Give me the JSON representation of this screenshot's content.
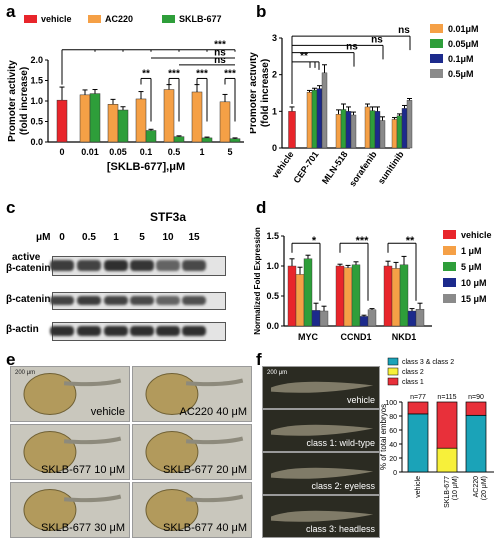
{
  "panels": {
    "a": {
      "label": "a"
    },
    "b": {
      "label": "b"
    },
    "c": {
      "label": "c"
    },
    "d": {
      "label": "d"
    },
    "e": {
      "label": "e"
    },
    "f": {
      "label": "f"
    }
  },
  "colors": {
    "red": "#e8252b",
    "orange": "#f5a046",
    "green": "#2e9e3a",
    "navy": "#1c2a8c",
    "gray": "#8a8a8a",
    "teal": "#1ba3b8",
    "yellow": "#f7f03a",
    "fred": "#e8303a"
  },
  "chart_data": [
    {
      "panel": "a",
      "type": "bar",
      "ylabel": "Promoter activity\n(fold increase)",
      "xlabel": "[SKLB-677],μM",
      "ylim": [
        0,
        2.0
      ],
      "yticks": [
        "0.0",
        "0.5",
        "1.0",
        "1.5",
        "2.0"
      ],
      "legend": [
        "vehicle",
        "AC220",
        "SKLB-677"
      ],
      "groups": [
        {
          "x": "0",
          "bars": [
            {
              "s": "vehicle",
              "v": 1.02,
              "e": 0.32
            }
          ]
        },
        {
          "x": "0.01",
          "bars": [
            {
              "s": "AC220",
              "v": 1.15,
              "e": 0.12
            },
            {
              "s": "SKLB-677",
              "v": 1.18,
              "e": 0.1
            }
          ]
        },
        {
          "x": "0.05",
          "bars": [
            {
              "s": "AC220",
              "v": 0.92,
              "e": 0.12
            },
            {
              "s": "SKLB-677",
              "v": 0.78,
              "e": 0.08
            }
          ]
        },
        {
          "x": "0.1",
          "bars": [
            {
              "s": "AC220",
              "v": 1.05,
              "e": 0.18
            },
            {
              "s": "SKLB-677",
              "v": 0.28,
              "e": 0.03
            }
          ]
        },
        {
          "x": "0.5",
          "bars": [
            {
              "s": "AC220",
              "v": 1.28,
              "e": 0.12
            },
            {
              "s": "SKLB-677",
              "v": 0.13,
              "e": 0.02
            }
          ]
        },
        {
          "x": "1",
          "bars": [
            {
              "s": "AC220",
              "v": 1.22,
              "e": 0.18
            },
            {
              "s": "SKLB-677",
              "v": 0.1,
              "e": 0.02
            }
          ]
        },
        {
          "x": "5",
          "bars": [
            {
              "s": "AC220",
              "v": 0.98,
              "e": 0.18
            },
            {
              "s": "SKLB-677",
              "v": 0.08,
              "e": 0.02
            }
          ]
        }
      ],
      "annotations": [
        "**",
        "***",
        "***",
        "***",
        "ns",
        "ns",
        "***"
      ]
    },
    {
      "panel": "b",
      "type": "bar",
      "ylabel": "Promoter activity\n(fold increase)",
      "ylim": [
        0,
        3
      ],
      "yticks": [
        "0",
        "1",
        "2",
        "3"
      ],
      "legend": [
        "0.01μM",
        "0.05μM",
        "0.1μM",
        "0.5μM"
      ],
      "groups": [
        {
          "x": "vehicle",
          "bars": [
            {
              "s": "vehicle",
              "v": 1.0,
              "e": 0.12
            }
          ]
        },
        {
          "x": "CEP-701",
          "bars": [
            {
              "s": "0.01μM",
              "v": 1.52,
              "e": 0.05
            },
            {
              "s": "0.05μM",
              "v": 1.58,
              "e": 0.05
            },
            {
              "s": "0.1μM",
              "v": 1.62,
              "e": 0.08
            },
            {
              "s": "0.5μM",
              "v": 2.05,
              "e": 0.22
            }
          ]
        },
        {
          "x": "MLN-518",
          "bars": [
            {
              "s": "0.01μM",
              "v": 0.92,
              "e": 0.12
            },
            {
              "s": "0.05μM",
              "v": 1.05,
              "e": 0.15
            },
            {
              "s": "0.1μM",
              "v": 1.0,
              "e": 0.12
            },
            {
              "s": "0.5μM",
              "v": 0.9,
              "e": 0.08
            }
          ]
        },
        {
          "x": "sorafenib",
          "bars": [
            {
              "s": "0.01μM",
              "v": 1.12,
              "e": 0.08
            },
            {
              "s": "0.05μM",
              "v": 1.02,
              "e": 0.1
            },
            {
              "s": "0.1μM",
              "v": 1.0,
              "e": 0.12
            },
            {
              "s": "0.5μM",
              "v": 0.75,
              "e": 0.1
            }
          ]
        },
        {
          "x": "sunitinib",
          "bars": [
            {
              "s": "0.01μM",
              "v": 0.78,
              "e": 0.05
            },
            {
              "s": "0.05μM",
              "v": 0.88,
              "e": 0.05
            },
            {
              "s": "0.1μM",
              "v": 1.08,
              "e": 0.08
            },
            {
              "s": "0.5μM",
              "v": 1.3,
              "e": 0.05
            }
          ]
        }
      ],
      "annotations": [
        "**",
        "ns",
        "ns",
        "ns"
      ]
    },
    {
      "panel": "d",
      "type": "bar",
      "ylabel": "Normalized Fold Expression",
      "ylim": [
        0,
        1.5
      ],
      "yticks": [
        "0.0",
        "0.5",
        "1.0",
        "1.5"
      ],
      "legend": [
        "vehicle",
        "1 μM",
        "5 μM",
        "10 μM",
        "15 μM"
      ],
      "groups": [
        {
          "x": "MYC",
          "bars": [
            {
              "s": "vehicle",
              "v": 1.0,
              "e": 0.12
            },
            {
              "s": "1 μM",
              "v": 0.86,
              "e": 0.12
            },
            {
              "s": "5 μM",
              "v": 1.12,
              "e": 0.06
            },
            {
              "s": "10 μM",
              "v": 0.26,
              "e": 0.12
            },
            {
              "s": "15 μM",
              "v": 0.25,
              "e": 0.08
            }
          ]
        },
        {
          "x": "CCND1",
          "bars": [
            {
              "s": "vehicle",
              "v": 1.0,
              "e": 0.03
            },
            {
              "s": "1 μM",
              "v": 0.97,
              "e": 0.04
            },
            {
              "s": "5 μM",
              "v": 1.02,
              "e": 0.05
            },
            {
              "s": "10 μM",
              "v": 0.16,
              "e": 0.02
            },
            {
              "s": "15 μM",
              "v": 0.27,
              "e": 0.02
            }
          ]
        },
        {
          "x": "NKD1",
          "bars": [
            {
              "s": "vehicle",
              "v": 1.0,
              "e": 0.08
            },
            {
              "s": "1 μM",
              "v": 0.96,
              "e": 0.1
            },
            {
              "s": "5 μM",
              "v": 1.02,
              "e": 0.14
            },
            {
              "s": "10 μM",
              "v": 0.25,
              "e": 0.04
            },
            {
              "s": "15 μM",
              "v": 0.28,
              "e": 0.1
            }
          ]
        }
      ],
      "annotations": [
        "*",
        "***",
        "**"
      ]
    },
    {
      "panel": "f",
      "type": "bar",
      "stacked": true,
      "ylabel": "% of total embryos",
      "ylim": [
        0,
        100
      ],
      "yticks": [
        "0",
        "20",
        "40",
        "60",
        "80",
        "100"
      ],
      "legend": [
        "class 3 & class 2",
        "class 2",
        "class 1"
      ],
      "categories": [
        "vehicle",
        "SKLB-677\n(10 μM)",
        "AC220\n(20 μM)"
      ],
      "n_labels": [
        "n=77",
        "n=115",
        "n=90"
      ],
      "series": [
        {
          "name": "class 3 & class 2",
          "values": [
            83,
            0,
            81
          ]
        },
        {
          "name": "class 2",
          "values": [
            0,
            34,
            0
          ]
        },
        {
          "name": "class 1",
          "values": [
            17,
            66,
            19
          ]
        }
      ]
    }
  ],
  "western": {
    "title": "STF3a",
    "um_label": "μM",
    "concentrations": [
      "0",
      "0.5",
      "1",
      "5",
      "10",
      "15"
    ],
    "rows": [
      {
        "label_1": "active",
        "label_2": "β-catenin",
        "intensity": [
          0.85,
          0.8,
          0.95,
          0.9,
          0.55,
          0.75
        ]
      },
      {
        "label_1": "",
        "label_2": "β-catenin",
        "intensity": [
          0.8,
          0.85,
          0.8,
          0.75,
          0.55,
          0.7
        ]
      },
      {
        "label_1": "",
        "label_2": "β-actin",
        "intensity": [
          0.95,
          0.95,
          0.95,
          0.95,
          0.95,
          0.95
        ]
      }
    ]
  },
  "embryos_e": [
    {
      "caption": "vehicle",
      "scale": "200 μm"
    },
    {
      "caption": "AC220 40 μM",
      "scale": ""
    },
    {
      "caption": "SKLB-677 10 μM",
      "scale": ""
    },
    {
      "caption": "SKLB-677 20 μM",
      "scale": ""
    },
    {
      "caption": "SKLB-677 30 μM",
      "scale": ""
    },
    {
      "caption": "SKLB-677 40 μM",
      "scale": ""
    }
  ],
  "embryos_f": [
    {
      "caption": "vehicle",
      "scale": "200 μm"
    },
    {
      "caption": "class 1: wild-type",
      "scale": ""
    },
    {
      "caption": "class 2: eyeless",
      "scale": ""
    },
    {
      "caption": "class 3: headless",
      "scale": ""
    }
  ]
}
